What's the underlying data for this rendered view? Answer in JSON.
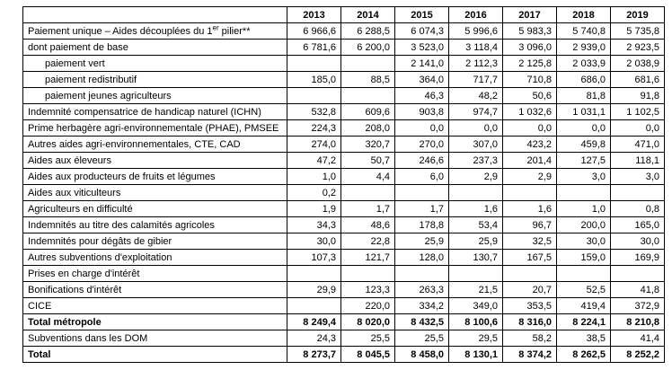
{
  "table": {
    "columns": [
      "2013",
      "2014",
      "2015",
      "2016",
      "2017",
      "2018",
      "2019"
    ],
    "rows": [
      {
        "label": "Paiement unique – Aides découplées du 1",
        "sup": "er",
        "label_after": " pilier**",
        "indent": 0,
        "bold": false,
        "values": [
          "6 966,6",
          "6 288,5",
          "6 074,3",
          "5 996,6",
          "5 983,3",
          "5 740,8",
          "5 735,8"
        ]
      },
      {
        "label": "dont paiement de base",
        "indent": 0,
        "bold": false,
        "values": [
          "6 781,6",
          "6 200,0",
          "3 523,0",
          "3 118,4",
          "3 096,0",
          "2 939,0",
          "2 923,5"
        ]
      },
      {
        "label": "paiement vert",
        "indent": 1,
        "bold": false,
        "values": [
          "",
          "",
          "2 141,0",
          "2 112,3",
          "2 125,8",
          "2 033,9",
          "2 038,9"
        ]
      },
      {
        "label": "paiement redistributif",
        "indent": 1,
        "bold": false,
        "values": [
          "185,0",
          "88,5",
          "364,0",
          "717,7",
          "710,8",
          "686,0",
          "681,6"
        ]
      },
      {
        "label": "paiement jeunes agriculteurs",
        "indent": 1,
        "bold": false,
        "values": [
          "",
          "",
          "46,3",
          "48,2",
          "50,6",
          "81,8",
          "91,8"
        ]
      },
      {
        "label": "Indemnité compensatrice de handicap naturel (ICHN)",
        "indent": 0,
        "bold": false,
        "values": [
          "532,8",
          "609,6",
          "903,8",
          "974,7",
          "1 032,6",
          "1 031,1",
          "1 102,5"
        ]
      },
      {
        "label": "Prime herbagère agri-environnementale (PHAE), PMSEE",
        "indent": 0,
        "bold": false,
        "values": [
          "224,3",
          "208,0",
          "0,0",
          "0,0",
          "0,0",
          "0,0",
          "0,0"
        ]
      },
      {
        "label": "Autres aides agri-environnementales, CTE, CAD",
        "indent": 0,
        "bold": false,
        "values": [
          "274,0",
          "320,7",
          "270,0",
          "307,0",
          "423,2",
          "459,8",
          "471,0"
        ]
      },
      {
        "label": "Aides aux éleveurs",
        "indent": 0,
        "bold": false,
        "values": [
          "47,2",
          "50,7",
          "246,6",
          "237,3",
          "201,4",
          "127,5",
          "118,1"
        ]
      },
      {
        "label": "Aides aux producteurs de fruits et légumes",
        "indent": 0,
        "bold": false,
        "values": [
          "1,0",
          "4,4",
          "6,0",
          "2,9",
          "2,9",
          "3,0",
          "3,0"
        ]
      },
      {
        "label": "Aides aux viticulteurs",
        "indent": 0,
        "bold": false,
        "values": [
          "0,2",
          "",
          "",
          "",
          "",
          "",
          ""
        ]
      },
      {
        "label": "Agriculteurs en difficulté",
        "indent": 0,
        "bold": false,
        "values": [
          "1,9",
          "1,7",
          "1,7",
          "1,6",
          "1,6",
          "1,0",
          "0,8"
        ]
      },
      {
        "label": "Indemnités au titre des calamités agricoles",
        "indent": 0,
        "bold": false,
        "values": [
          "34,3",
          "48,6",
          "178,8",
          "53,4",
          "96,7",
          "200,0",
          "165,0"
        ]
      },
      {
        "label": "Indemnités pour dégâts de gibier",
        "indent": 0,
        "bold": false,
        "values": [
          "30,0",
          "22,8",
          "25,9",
          "25,9",
          "32,5",
          "30,0",
          "30,0"
        ]
      },
      {
        "label": "Autres subventions d'exploitation",
        "indent": 0,
        "bold": false,
        "values": [
          "107,3",
          "121,7",
          "128,0",
          "130,7",
          "167,5",
          "159,0",
          "169,9"
        ]
      },
      {
        "label": "Prises en charge d'intérêt",
        "indent": 0,
        "bold": false,
        "values": [
          "",
          "",
          "",
          "",
          "",
          "",
          ""
        ]
      },
      {
        "label": "Bonifications d'intérêt",
        "indent": 0,
        "bold": false,
        "values": [
          "29,9",
          "123,3",
          "263,3",
          "21,5",
          "20,7",
          "52,5",
          "41,8"
        ]
      },
      {
        "label": "CICE",
        "indent": 0,
        "bold": false,
        "values": [
          "",
          "220,0",
          "334,2",
          "349,0",
          "353,5",
          "419,4",
          "372,9"
        ]
      },
      {
        "label": "Total métropole",
        "indent": 0,
        "bold": true,
        "values": [
          "8 249,4",
          "8 020,0",
          "8 432,5",
          "8 100,6",
          "8 316,0",
          "8 224,1",
          "8 210,8"
        ]
      },
      {
        "label": "Subventions dans les DOM",
        "indent": 0,
        "bold": false,
        "values": [
          "24,3",
          "25,5",
          "25,5",
          "29,5",
          "58,2",
          "38,5",
          "41,4"
        ]
      },
      {
        "label": "Total",
        "indent": 0,
        "bold": true,
        "values": [
          "8 273,7",
          "8 045,5",
          "8 458,0",
          "8 130,1",
          "8 374,2",
          "8 262,5",
          "8 252,2"
        ]
      }
    ]
  },
  "layout_colors": {
    "border": "#000000",
    "text": "#000000",
    "background": "#ffffff"
  }
}
